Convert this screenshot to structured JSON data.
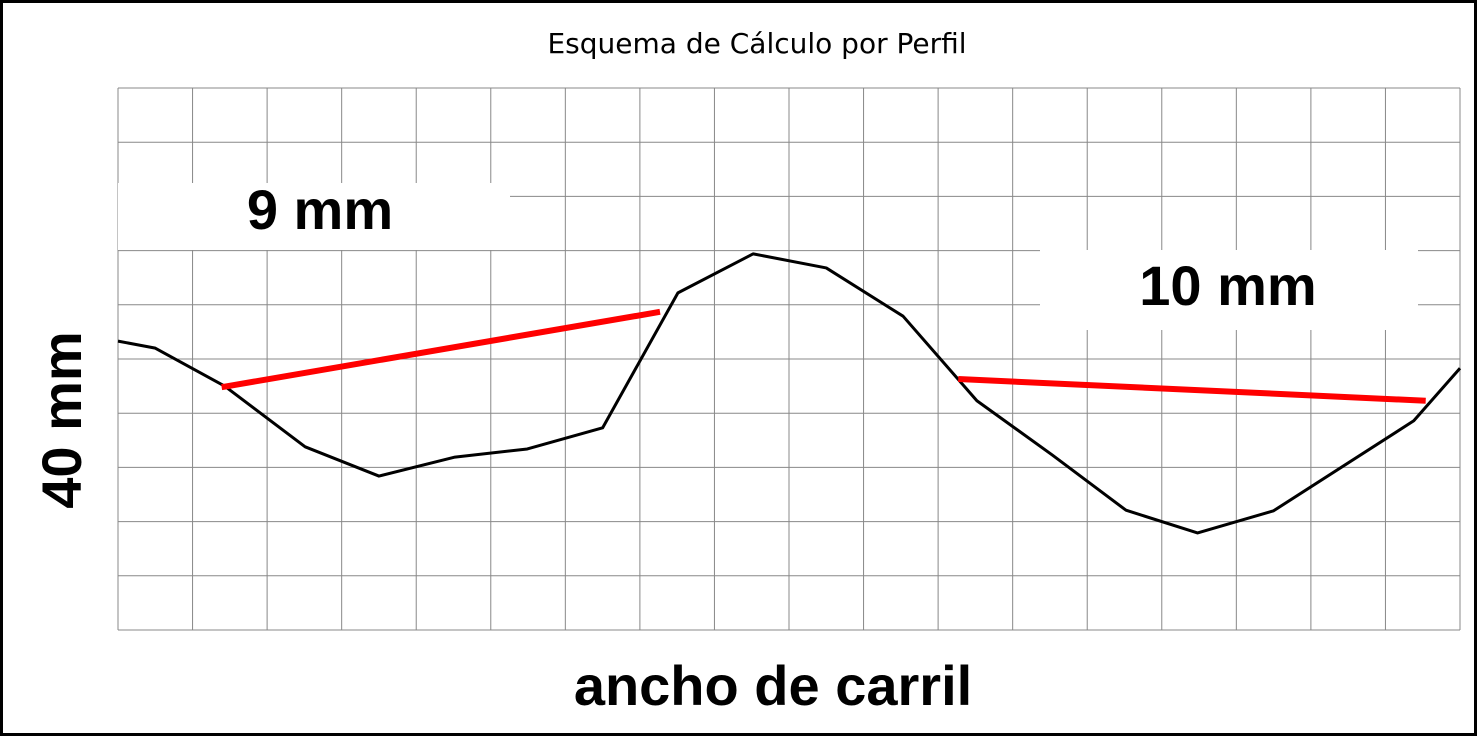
{
  "chart_data": {
    "type": "line",
    "title": "Esquema de Cálculo por Perfil",
    "xlabel": "ancho de carril",
    "ylabel": "40 mm",
    "annotations": [
      "9 mm",
      "10 mm"
    ],
    "xlim": [
      0,
      18
    ],
    "ylim": [
      0,
      10
    ],
    "xticks": [
      0,
      1,
      2,
      3,
      4,
      5,
      6,
      7,
      8,
      9,
      10,
      11,
      12,
      13,
      14,
      15,
      16,
      17,
      18
    ],
    "yticks": [
      0,
      1,
      2,
      3,
      4,
      5,
      6,
      7,
      8,
      9,
      10
    ],
    "grid": true,
    "series": [
      {
        "color": "#000000",
        "x": [
          0,
          0.5,
          1.43,
          2.51,
          3.5,
          4.52,
          5.49,
          6.5,
          7.51,
          8.52,
          9.5,
          10.53,
          11.52,
          12.53,
          13.52,
          14.48,
          15.5,
          17.38,
          18
        ],
        "values": [
          5.33,
          5.2,
          4.5,
          3.38,
          2.84,
          3.19,
          3.34,
          3.73,
          6.22,
          6.94,
          6.68,
          5.79,
          4.23,
          3.23,
          2.21,
          1.79,
          2.2,
          3.86,
          4.83
        ]
      },
      {
        "color": "#ff0000",
        "x": [
          1.39,
          7.27
        ],
        "values": [
          4.48,
          5.87
        ]
      },
      {
        "color": "#ff0000",
        "x": [
          11.27,
          17.54
        ],
        "values": [
          4.63,
          4.23
        ]
      }
    ]
  }
}
